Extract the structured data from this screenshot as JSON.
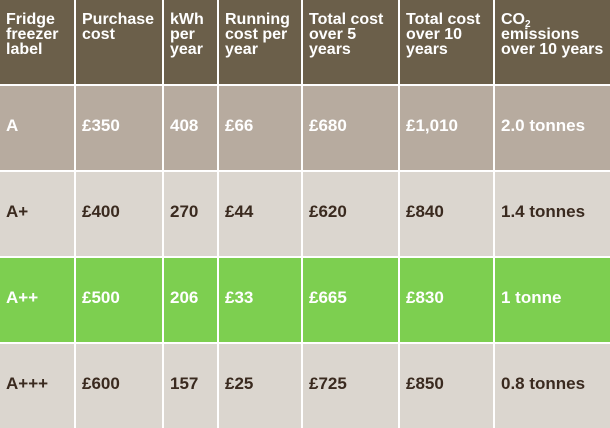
{
  "table": {
    "headers": [
      "Fridge freezer label",
      "Purchase cost",
      "kWh per year",
      "Running cost per year",
      "Total cost over 5 years",
      "Total cost over 10 years",
      "CO"
    ],
    "co2_subscript": "2",
    "co2_header_rest": "emissions over 10 years",
    "rows": [
      [
        "A",
        "£350",
        "408",
        "£66",
        "£680",
        "£1,010",
        "2.0 tonnes"
      ],
      [
        "A+",
        "£400",
        "270",
        "£44",
        "£620",
        "£840",
        "1.4 tonnes"
      ],
      [
        "A++",
        "£500",
        "206",
        "£33",
        "£665",
        "£830",
        "1 tonne"
      ],
      [
        "A+++",
        "£600",
        "157",
        "£25",
        "£725",
        "£850",
        "0.8 tonnes"
      ]
    ]
  },
  "colors": {
    "header_bg": "#6b5f4a",
    "row_a_bg": "#b7ab9f",
    "row_a_plus_bg": "#dbd6cf",
    "row_a_plus_plus_bg": "#7dcf50",
    "row_a_plus_plus_plus_bg": "#dbd6cf",
    "dark_text": "#3a2a1f",
    "light_text": "#ffffff"
  }
}
